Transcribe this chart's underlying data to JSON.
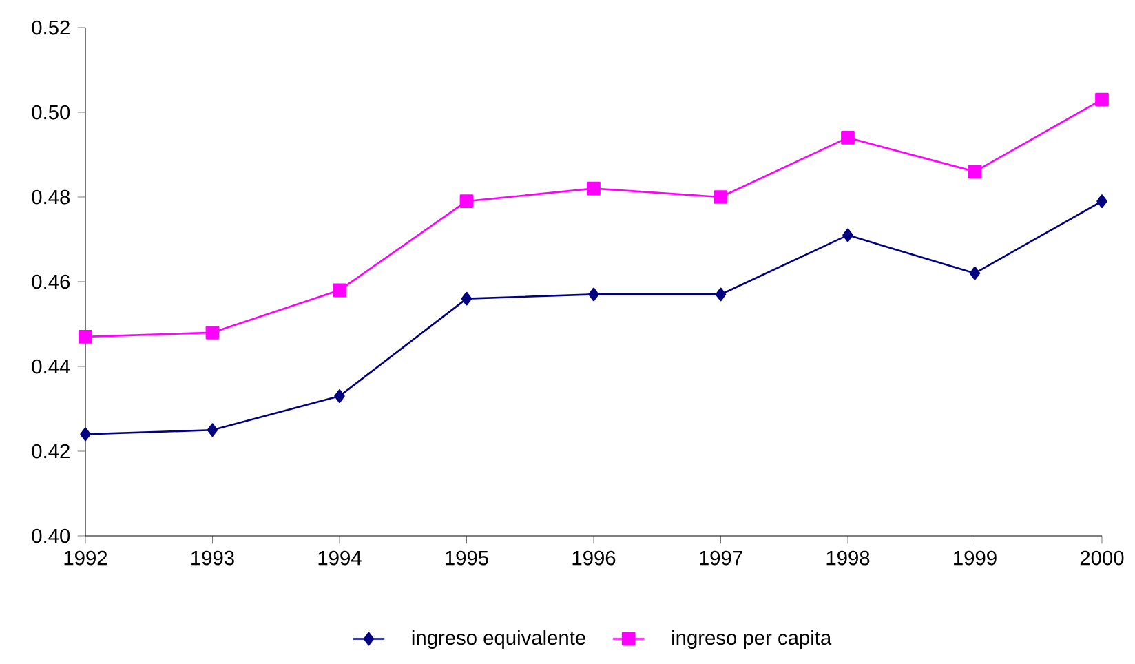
{
  "chart_data": {
    "type": "line",
    "x": [
      1992,
      1993,
      1994,
      1995,
      1996,
      1997,
      1998,
      1999,
      2000
    ],
    "series": [
      {
        "name": "ingreso equivalente",
        "color": "#000080",
        "marker": "diamond",
        "values": [
          0.424,
          0.425,
          0.433,
          0.456,
          0.457,
          0.457,
          0.471,
          0.462,
          0.479
        ]
      },
      {
        "name": "ingreso per capita",
        "color": "#ff00ff",
        "marker": "square",
        "values": [
          0.447,
          0.448,
          0.458,
          0.479,
          0.482,
          0.48,
          0.494,
          0.486,
          0.503
        ]
      }
    ],
    "xlim": [
      1992,
      2000
    ],
    "xticks": [
      1992,
      1993,
      1994,
      1995,
      1996,
      1997,
      1998,
      1999,
      2000
    ],
    "ylim": [
      0.4,
      0.52
    ],
    "yticks": [
      {
        "value": 0.4,
        "label": "0.40"
      },
      {
        "value": 0.42,
        "label": "0.42"
      },
      {
        "value": 0.44,
        "label": "0.44"
      },
      {
        "value": 0.46,
        "label": "0.46"
      },
      {
        "value": 0.48,
        "label": "0.48"
      },
      {
        "value": 0.5,
        "label": "0.50"
      },
      {
        "value": 0.52,
        "label": "0.52"
      }
    ],
    "grid": false,
    "legend": "bottom",
    "line_style": "solid"
  }
}
